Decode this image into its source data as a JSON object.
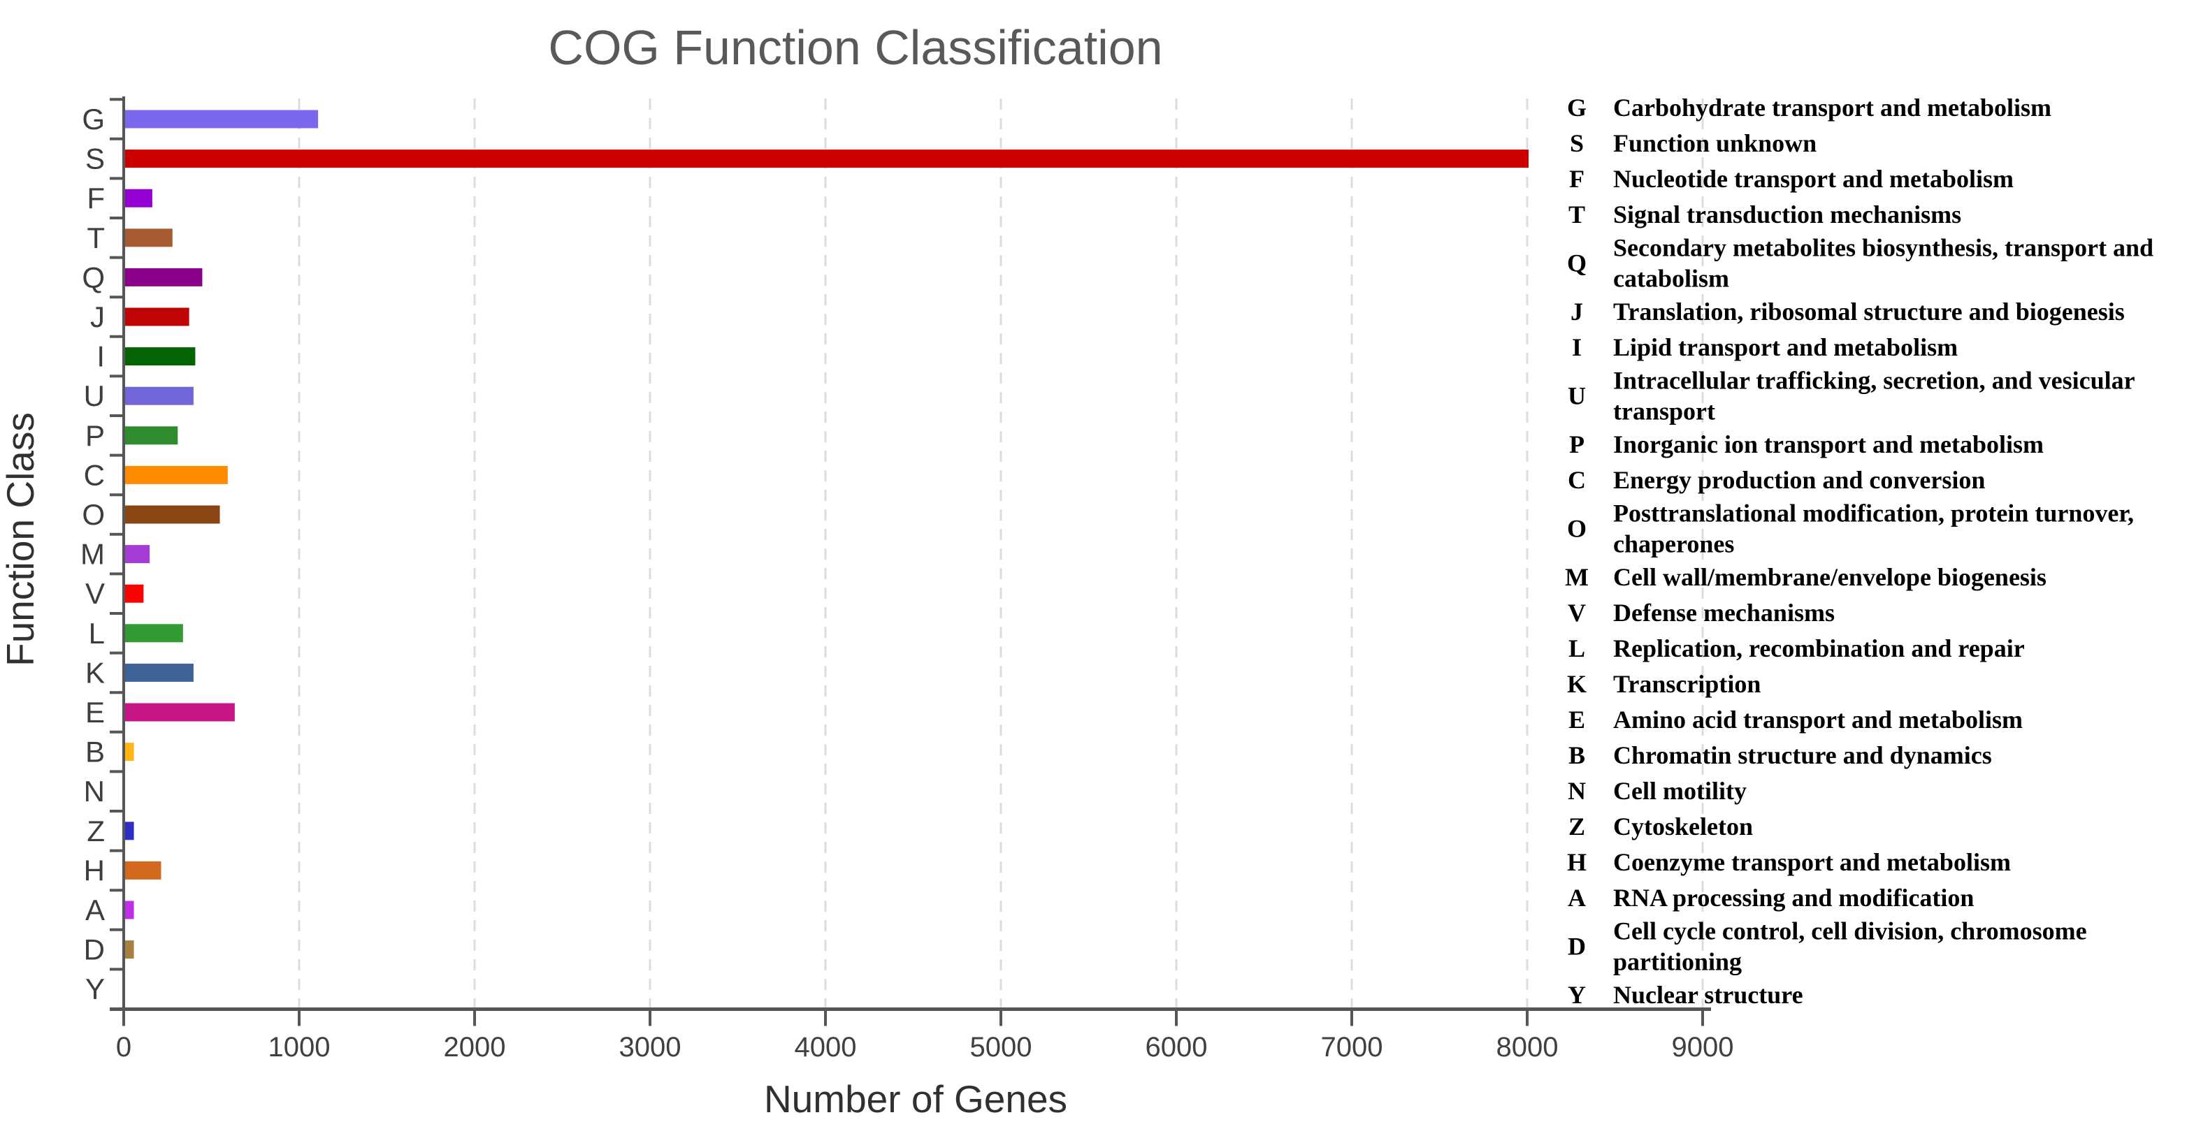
{
  "chart_data": {
    "type": "bar",
    "orientation": "horizontal",
    "title": "COG Function Classification",
    "xlabel": "Number of Genes",
    "ylabel": "Function Class",
    "xlim": [
      0,
      9400
    ],
    "x_ticks": [
      0,
      1000,
      2000,
      3000,
      4000,
      5000,
      6000,
      7000,
      8000,
      9000
    ],
    "grid": "vertical-dashed",
    "legend_position": "right",
    "title_color": "#595959",
    "axis_color": "#54565a",
    "grid_color": "#dcdcdc",
    "categories": [
      "G",
      "S",
      "F",
      "T",
      "Q",
      "J",
      "I",
      "U",
      "P",
      "C",
      "O",
      "M",
      "V",
      "L",
      "K",
      "E",
      "B",
      "N",
      "Z",
      "H",
      "A",
      "D",
      "Y"
    ],
    "values": [
      1100,
      8000,
      155,
      270,
      440,
      365,
      400,
      390,
      300,
      585,
      540,
      140,
      105,
      330,
      390,
      625,
      50,
      0,
      50,
      205,
      50,
      50,
      0
    ],
    "colors": [
      "#7B68EE",
      "#CC0000",
      "#9400D3",
      "#A65B30",
      "#8B008B",
      "#BE0404",
      "#046404",
      "#7264D9",
      "#2E8B2E",
      "#FF8C00",
      "#8B4513",
      "#A43DD6",
      "#FF0000",
      "#339933",
      "#3E6399",
      "#C71585",
      "#FFB612",
      "#999999",
      "#2E2EC4",
      "#D2691E",
      "#BE2FE6",
      "#A5823F",
      "#999999"
    ],
    "legend": [
      {
        "letter": "G",
        "lines": [
          "Carbohydrate transport and metabolism"
        ]
      },
      {
        "letter": "S",
        "lines": [
          "Function unknown"
        ]
      },
      {
        "letter": "F",
        "lines": [
          "Nucleotide transport and metabolism"
        ]
      },
      {
        "letter": "T",
        "lines": [
          "Signal transduction mechanisms"
        ]
      },
      {
        "letter": "Q",
        "lines": [
          "Secondary metabolites biosynthesis, transport and",
          "catabolism"
        ]
      },
      {
        "letter": "J",
        "lines": [
          "Translation, ribosomal structure and biogenesis"
        ]
      },
      {
        "letter": "I",
        "lines": [
          "Lipid transport and metabolism"
        ]
      },
      {
        "letter": "U",
        "lines": [
          "Intracellular trafficking, secretion, and vesicular",
          "transport"
        ]
      },
      {
        "letter": "P",
        "lines": [
          "Inorganic ion transport and metabolism"
        ]
      },
      {
        "letter": "C",
        "lines": [
          "Energy production and conversion"
        ]
      },
      {
        "letter": "O",
        "lines": [
          "Posttranslational modification, protein turnover,",
          "chaperones"
        ]
      },
      {
        "letter": "M",
        "lines": [
          "Cell wall/membrane/envelope biogenesis"
        ]
      },
      {
        "letter": "V",
        "lines": [
          "Defense mechanisms"
        ]
      },
      {
        "letter": "L",
        "lines": [
          "Replication, recombination and repair"
        ]
      },
      {
        "letter": "K",
        "lines": [
          "Transcription"
        ]
      },
      {
        "letter": "E",
        "lines": [
          "Amino acid transport and metabolism"
        ]
      },
      {
        "letter": "B",
        "lines": [
          "Chromatin structure and dynamics"
        ]
      },
      {
        "letter": "N",
        "lines": [
          "Cell motility"
        ]
      },
      {
        "letter": "Z",
        "lines": [
          "Cytoskeleton"
        ]
      },
      {
        "letter": "H",
        "lines": [
          "Coenzyme transport and metabolism"
        ]
      },
      {
        "letter": "A",
        "lines": [
          "RNA processing and modification"
        ]
      },
      {
        "letter": "D",
        "lines": [
          "Cell cycle control, cell division, chromosome",
          "partitioning"
        ]
      },
      {
        "letter": "Y",
        "lines": [
          "Nuclear structure"
        ]
      }
    ]
  }
}
